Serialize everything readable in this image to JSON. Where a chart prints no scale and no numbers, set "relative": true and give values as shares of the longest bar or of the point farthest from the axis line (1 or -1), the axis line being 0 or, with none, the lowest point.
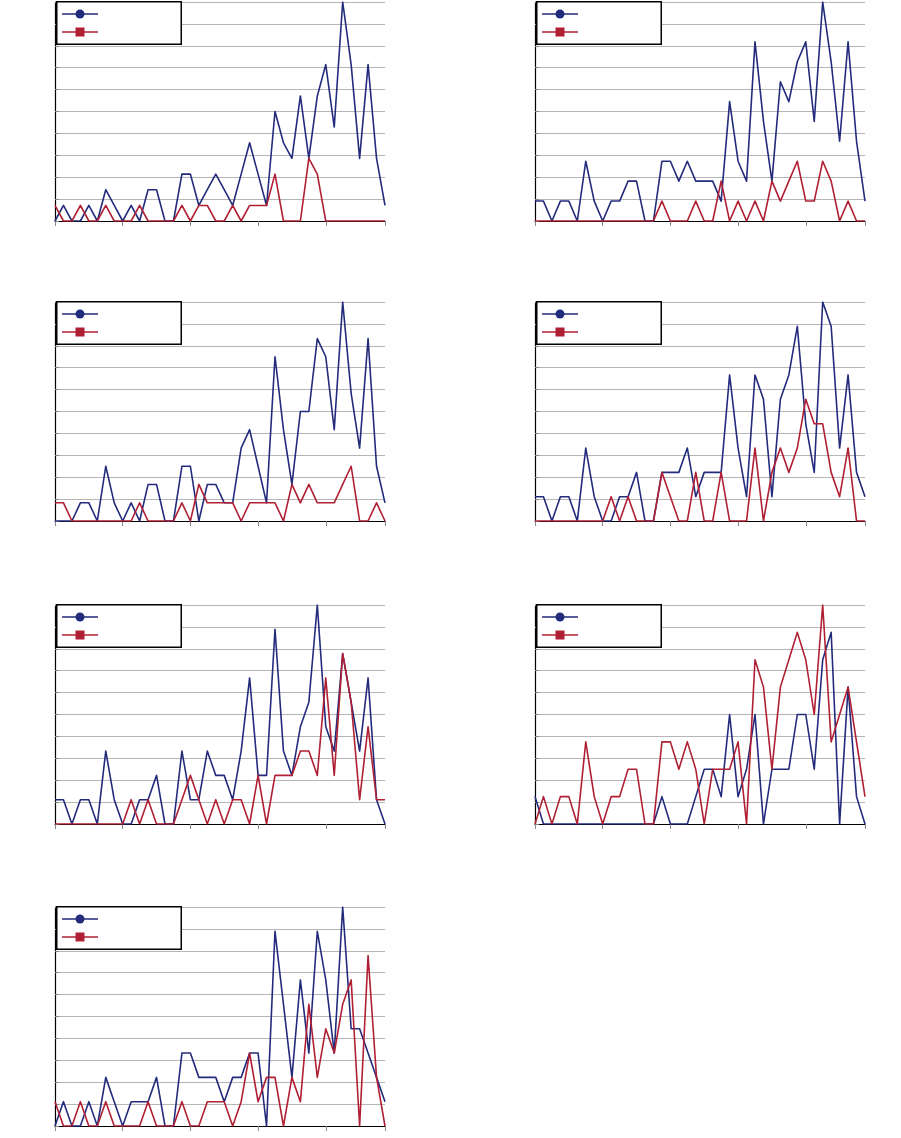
{
  "chart_data": [
    {
      "type": "line",
      "relative": true,
      "grid": "y",
      "categories": [
        null,
        null,
        null,
        null,
        null,
        null,
        null,
        null,
        null,
        null,
        null,
        null,
        null,
        null,
        null,
        null,
        null,
        null,
        null,
        null,
        null,
        null,
        null,
        null,
        null,
        null,
        null,
        null,
        null,
        null,
        null,
        null,
        null,
        null,
        null,
        null,
        null,
        null,
        null,
        null
      ],
      "series": [
        {
          "color": "#232b7c",
          "values": [
            0,
            0.071,
            0,
            0,
            0.071,
            0,
            0.143,
            0.071,
            0,
            0.071,
            0,
            0.143,
            0.143,
            0,
            0,
            0.214,
            0.214,
            0.071,
            0.143,
            0.214,
            0.143,
            0.071,
            0.214,
            0.357,
            0.214,
            0.071,
            0.5,
            0.357,
            0.286,
            0.571,
            0.286,
            0.571,
            0.714,
            0.429,
            1,
            0.714,
            0.286,
            0.714,
            0.286,
            0.071
          ]
        },
        {
          "color": "#b01f33",
          "values": [
            0.071,
            0,
            0,
            0.071,
            0,
            0,
            0.071,
            0,
            0,
            0,
            0.071,
            0,
            0,
            0,
            0,
            0.071,
            0,
            0.071,
            0.071,
            0,
            0,
            0.071,
            0,
            0.071,
            0.071,
            0.071,
            0.214,
            0,
            0,
            0,
            0.286,
            0.214,
            0,
            0,
            0,
            0,
            0,
            0,
            0,
            0
          ]
        }
      ]
    },
    {
      "type": "line",
      "relative": true,
      "grid": "y",
      "categories": [
        null,
        null,
        null,
        null,
        null,
        null,
        null,
        null,
        null,
        null,
        null,
        null,
        null,
        null,
        null,
        null,
        null,
        null,
        null,
        null,
        null,
        null,
        null,
        null,
        null,
        null,
        null,
        null,
        null,
        null,
        null,
        null,
        null,
        null,
        null,
        null,
        null,
        null,
        null,
        null
      ],
      "series": [
        {
          "color": "#232b7c",
          "values": [
            0.091,
            0.091,
            0,
            0.091,
            0.091,
            0,
            0.273,
            0.091,
            0,
            0.091,
            0.091,
            0.182,
            0.182,
            0,
            0,
            0.273,
            0.273,
            0.182,
            0.273,
            0.182,
            0.182,
            0.182,
            0.091,
            0.545,
            0.273,
            0.182,
            0.818,
            0.455,
            0.182,
            0.636,
            0.545,
            0.727,
            0.818,
            0.455,
            1,
            0.727,
            0.364,
            0.818,
            0.364,
            0.091
          ]
        },
        {
          "color": "#b01f33",
          "values": [
            0,
            0,
            0,
            0,
            0,
            0,
            0,
            0,
            0,
            0,
            0,
            0,
            0,
            0,
            0,
            0.091,
            0,
            0,
            0,
            0.091,
            0,
            0,
            0.182,
            0,
            0.091,
            0,
            0.091,
            0,
            0.182,
            0.091,
            0.182,
            0.273,
            0.091,
            0.091,
            0.273,
            0.182,
            0,
            0.091,
            0,
            0
          ]
        }
      ]
    },
    {
      "type": "line",
      "relative": true,
      "grid": "y",
      "categories": [
        null,
        null,
        null,
        null,
        null,
        null,
        null,
        null,
        null,
        null,
        null,
        null,
        null,
        null,
        null,
        null,
        null,
        null,
        null,
        null,
        null,
        null,
        null,
        null,
        null,
        null,
        null,
        null,
        null,
        null,
        null,
        null,
        null,
        null,
        null,
        null,
        null,
        null,
        null,
        null
      ],
      "series": [
        {
          "color": "#232b7c",
          "values": [
            0,
            0,
            0,
            0.083,
            0.083,
            0,
            0.25,
            0.083,
            0,
            0.083,
            0,
            0.167,
            0.167,
            0,
            0,
            0.25,
            0.25,
            0,
            0.167,
            0.167,
            0.083,
            0.083,
            0.333,
            0.417,
            0.25,
            0.083,
            0.75,
            0.417,
            0.167,
            0.5,
            0.5,
            0.833,
            0.75,
            0.417,
            1,
            0.583,
            0.333,
            0.833,
            0.25,
            0.083
          ]
        },
        {
          "color": "#b01f33",
          "values": [
            0.083,
            0.083,
            0,
            0,
            0,
            0,
            0,
            0,
            0,
            0,
            0.083,
            0,
            0,
            0,
            0,
            0.083,
            0,
            0.167,
            0.083,
            0.083,
            0.083,
            0.083,
            0,
            0.083,
            0.083,
            0.083,
            0.083,
            0,
            0.167,
            0.083,
            0.167,
            0.083,
            0.083,
            0.083,
            0.167,
            0.25,
            0,
            0,
            0.083,
            0
          ]
        }
      ]
    },
    {
      "type": "line",
      "relative": true,
      "grid": "y",
      "categories": [
        null,
        null,
        null,
        null,
        null,
        null,
        null,
        null,
        null,
        null,
        null,
        null,
        null,
        null,
        null,
        null,
        null,
        null,
        null,
        null,
        null,
        null,
        null,
        null,
        null,
        null,
        null,
        null,
        null,
        null,
        null,
        null,
        null,
        null,
        null,
        null,
        null,
        null,
        null,
        null
      ],
      "series": [
        {
          "color": "#232b7c",
          "values": [
            0.111,
            0.111,
            0,
            0.111,
            0.111,
            0,
            0.333,
            0.111,
            0,
            0,
            0.111,
            0.111,
            0.222,
            0,
            0,
            0.222,
            0.222,
            0.222,
            0.333,
            0.111,
            0.222,
            0.222,
            0.222,
            0.667,
            0.333,
            0.111,
            0.667,
            0.556,
            0.111,
            0.556,
            0.667,
            0.889,
            0.444,
            0.222,
            1,
            0.889,
            0.333,
            0.667,
            0.222,
            0.111
          ]
        },
        {
          "color": "#b01f33",
          "values": [
            0,
            0,
            0,
            0,
            0,
            0,
            0,
            0,
            0,
            0.111,
            0,
            0.111,
            0,
            0,
            0,
            0.222,
            0.111,
            0,
            0,
            0.222,
            0,
            0,
            0.222,
            0,
            0,
            0,
            0.333,
            0,
            0.222,
            0.333,
            0.222,
            0.333,
            0.556,
            0.444,
            0.444,
            0.222,
            0.111,
            0.333,
            0,
            0
          ]
        }
      ]
    },
    {
      "type": "line",
      "relative": true,
      "grid": "y",
      "categories": [
        null,
        null,
        null,
        null,
        null,
        null,
        null,
        null,
        null,
        null,
        null,
        null,
        null,
        null,
        null,
        null,
        null,
        null,
        null,
        null,
        null,
        null,
        null,
        null,
        null,
        null,
        null,
        null,
        null,
        null,
        null,
        null,
        null,
        null,
        null,
        null,
        null,
        null,
        null,
        null
      ],
      "series": [
        {
          "color": "#232b7c",
          "values": [
            0.111,
            0.111,
            0,
            0.111,
            0.111,
            0,
            0.333,
            0.111,
            0,
            0,
            0.111,
            0.111,
            0.222,
            0,
            0,
            0.333,
            0.111,
            0.111,
            0.333,
            0.222,
            0.222,
            0.111,
            0.333,
            0.667,
            0.222,
            0.222,
            0.889,
            0.333,
            0.222,
            0.444,
            0.556,
            1,
            0.444,
            0.333,
            0.778,
            0.556,
            0.333,
            0.667,
            0.111,
            0
          ]
        },
        {
          "color": "#b01f33",
          "values": [
            0,
            0,
            0,
            0,
            0,
            0,
            0,
            0,
            0,
            0.111,
            0,
            0.111,
            0,
            0,
            0,
            0.111,
            0.222,
            0.111,
            0,
            0.111,
            0,
            0.111,
            0.111,
            0,
            0.222,
            0,
            0.222,
            0.222,
            0.222,
            0.333,
            0.333,
            0.222,
            0.667,
            0.222,
            0.778,
            0.556,
            0.111,
            0.444,
            0.111,
            0.111
          ]
        }
      ]
    },
    {
      "type": "line",
      "relative": true,
      "grid": "y",
      "categories": [
        null,
        null,
        null,
        null,
        null,
        null,
        null,
        null,
        null,
        null,
        null,
        null,
        null,
        null,
        null,
        null,
        null,
        null,
        null,
        null,
        null,
        null,
        null,
        null,
        null,
        null,
        null,
        null,
        null,
        null,
        null,
        null,
        null,
        null,
        null,
        null,
        null,
        null,
        null,
        null
      ],
      "series": [
        {
          "color": "#232b7c",
          "values": [
            0.125,
            0,
            0,
            0,
            0,
            0,
            0,
            0,
            0,
            0,
            0,
            0,
            0,
            0,
            0,
            0.125,
            0,
            0,
            0,
            0.125,
            0.25,
            0.25,
            0.125,
            0.5,
            0.125,
            0.25,
            0.5,
            0,
            0.25,
            0.25,
            0.25,
            0.5,
            0.5,
            0.25,
            0.75,
            0.875,
            0,
            0.625,
            0.125,
            0
          ]
        },
        {
          "color": "#b01f33",
          "values": [
            0,
            0.125,
            0,
            0.125,
            0.125,
            0,
            0.375,
            0.125,
            0,
            0.125,
            0.125,
            0.25,
            0.25,
            0,
            0,
            0.375,
            0.375,
            0.25,
            0.375,
            0.25,
            0,
            0.25,
            0.25,
            0.25,
            0.375,
            0,
            0.75,
            0.625,
            0.25,
            0.625,
            0.75,
            0.875,
            0.75,
            0.5,
            1,
            0.375,
            0.5,
            0.625,
            0.375,
            0.125
          ]
        }
      ]
    },
    {
      "type": "line",
      "relative": true,
      "grid": "y",
      "categories": [
        null,
        null,
        null,
        null,
        null,
        null,
        null,
        null,
        null,
        null,
        null,
        null,
        null,
        null,
        null,
        null,
        null,
        null,
        null,
        null,
        null,
        null,
        null,
        null,
        null,
        null,
        null,
        null,
        null,
        null,
        null,
        null,
        null,
        null,
        null,
        null,
        null,
        null,
        null,
        null
      ],
      "series": [
        {
          "color": "#232b7c",
          "values": [
            0,
            0.111,
            0,
            0,
            0.111,
            0,
            0.222,
            0.111,
            0,
            0.111,
            0.111,
            0.111,
            0.222,
            0,
            0,
            0.333,
            0.333,
            0.222,
            0.222,
            0.222,
            0.111,
            0.222,
            0.222,
            0.333,
            0.333,
            0,
            0.889,
            0.556,
            0.222,
            0.667,
            0.333,
            0.889,
            0.667,
            0.333,
            1,
            0.444,
            0.444,
            0.333,
            0.222,
            0.111
          ]
        },
        {
          "color": "#b01f33",
          "values": [
            0.111,
            0,
            0,
            0.111,
            0,
            0,
            0.111,
            0,
            0,
            0,
            0,
            0.111,
            0,
            0,
            0,
            0.111,
            0,
            0,
            0.111,
            0.111,
            0.111,
            0,
            0.111,
            0.333,
            0.111,
            0.222,
            0.222,
            0,
            0.222,
            0.111,
            0.556,
            0.222,
            0.444,
            0.333,
            0.556,
            0.667,
            0,
            0.778,
            0.222,
            0
          ]
        }
      ]
    }
  ]
}
